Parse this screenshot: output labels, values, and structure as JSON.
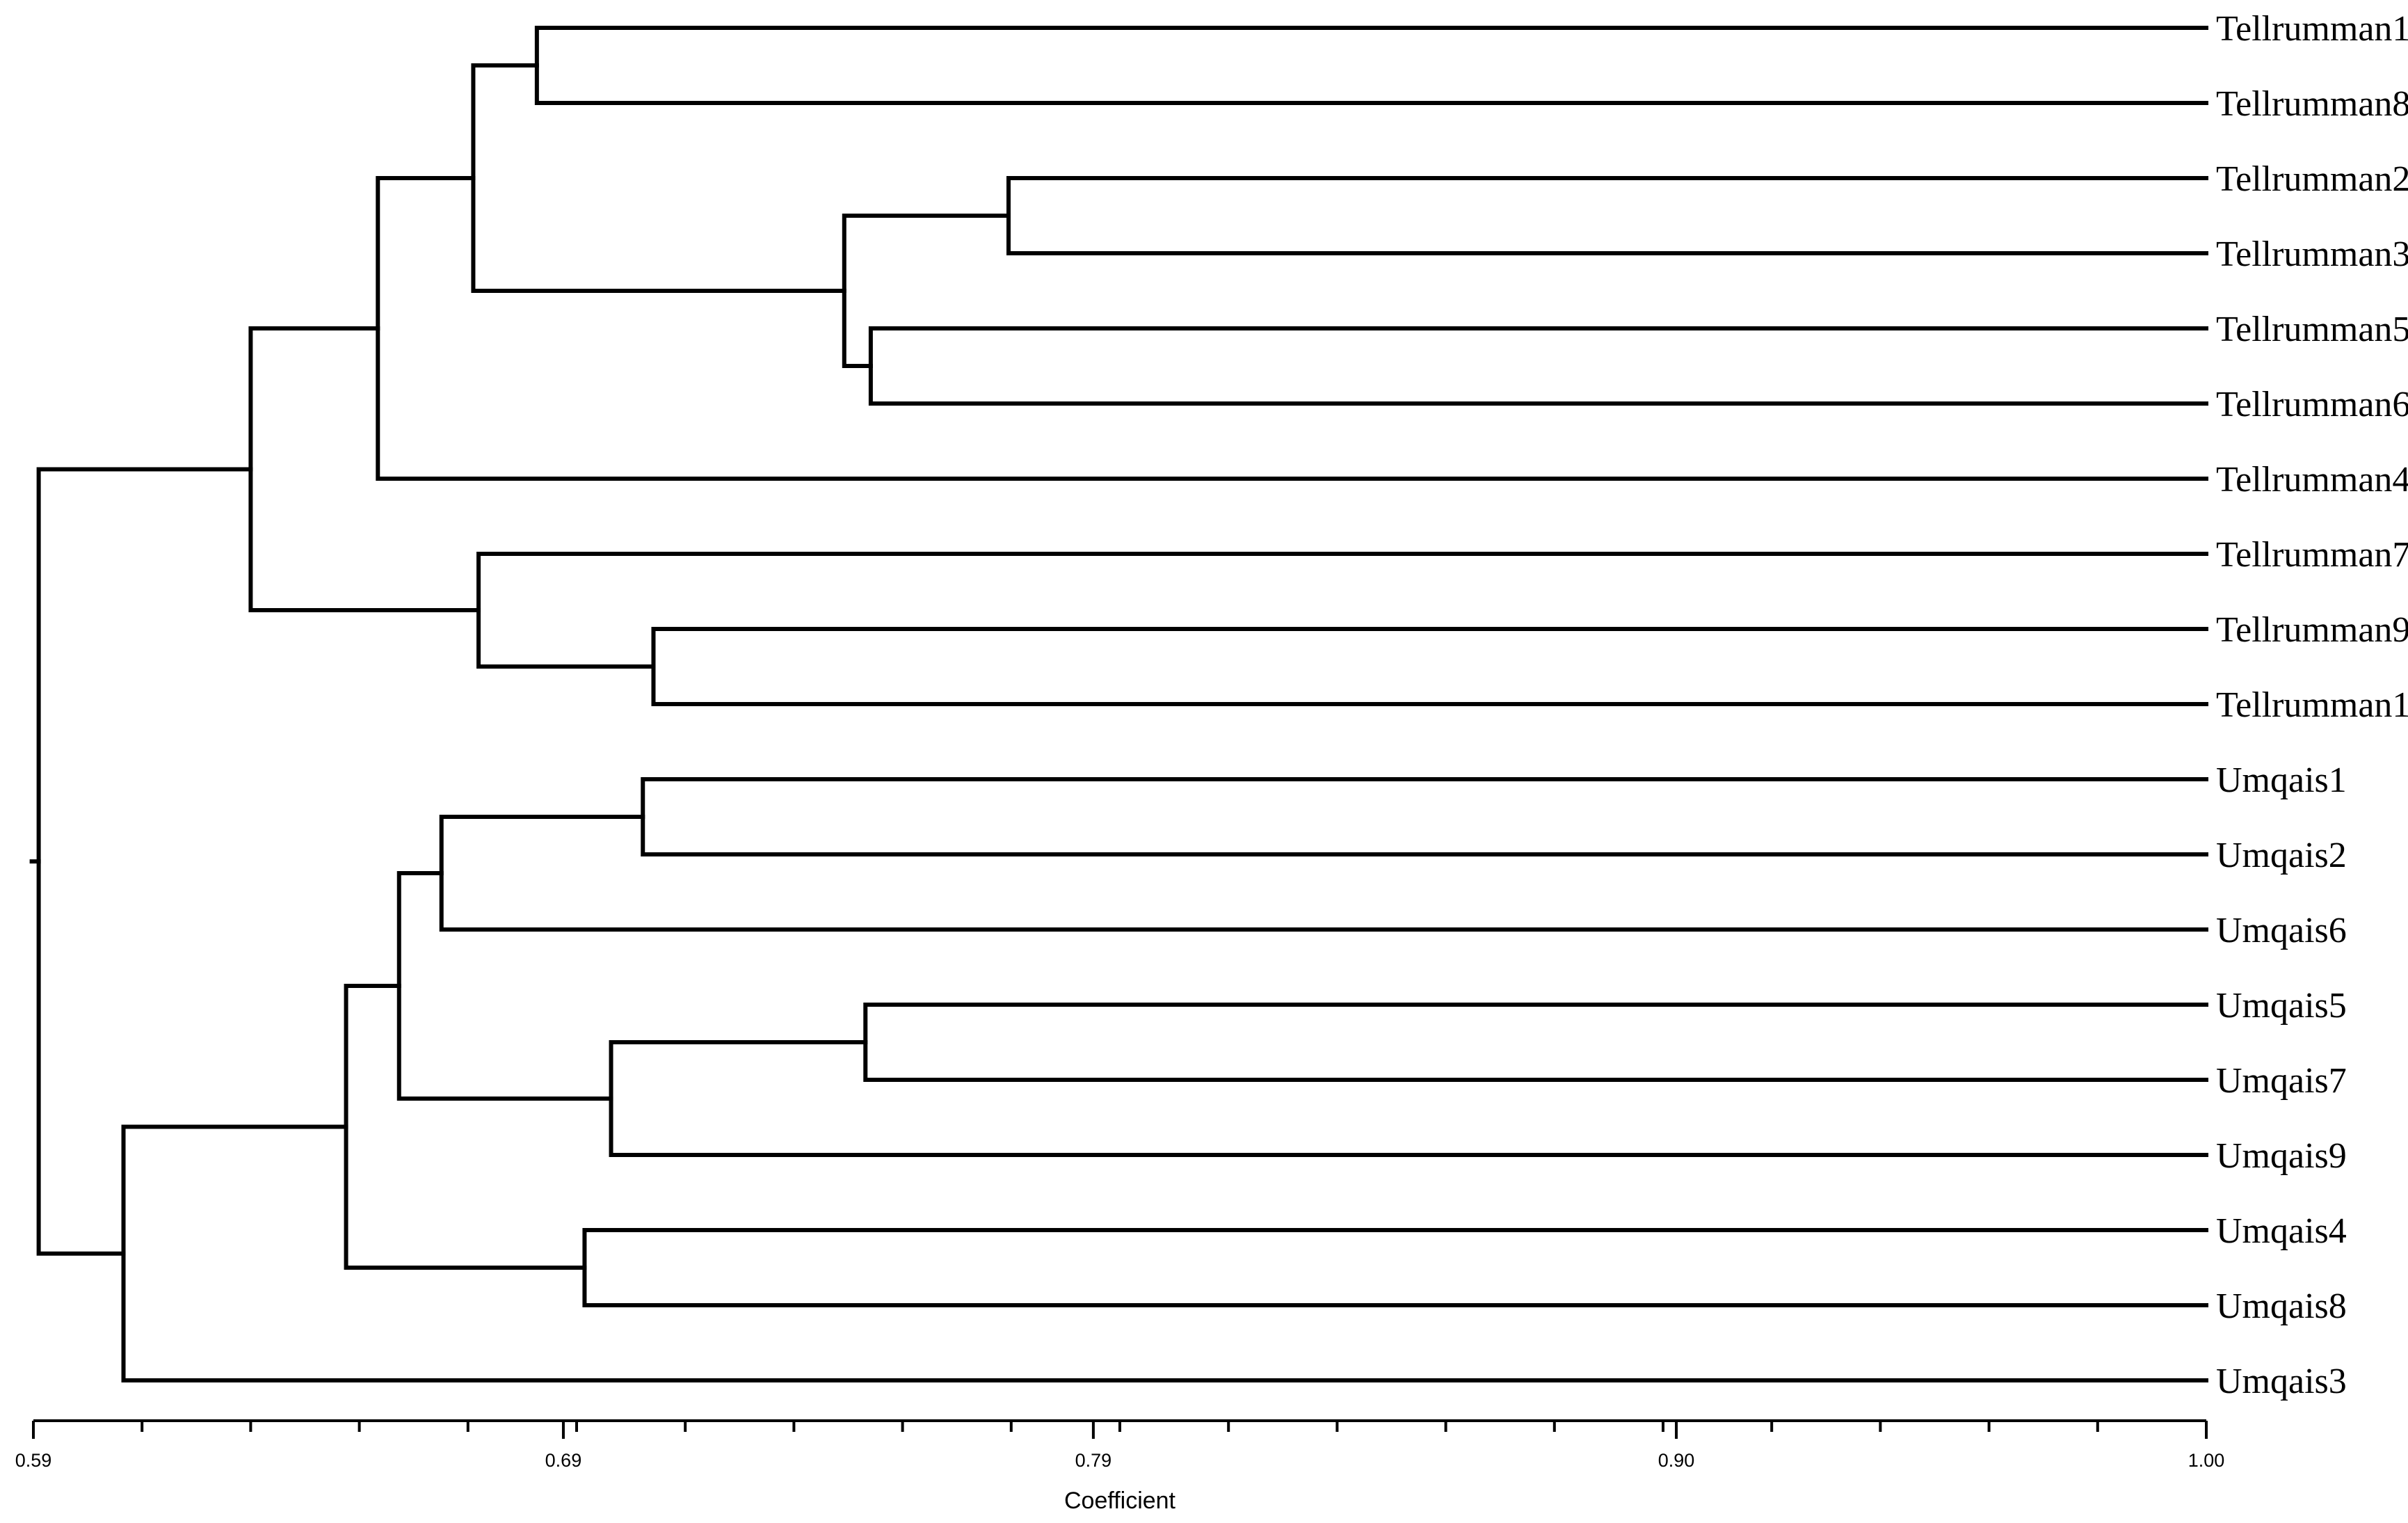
{
  "chart_data": {
    "type": "dendrogram",
    "xlabel": "Coefficient",
    "xlim": [
      0.59,
      1.0
    ],
    "ticks": [
      {
        "value": 0.59,
        "label": "0.59"
      },
      {
        "value": 0.69,
        "label": "0.69"
      },
      {
        "value": 0.79,
        "label": "0.79"
      },
      {
        "value": 0.9,
        "label": "0.90"
      },
      {
        "value": 1.0,
        "label": "1.00"
      }
    ],
    "minor_tick_step": 0.0205,
    "leaves": [
      "Tellrumman1",
      "Tellrumman8",
      "Tellrumman2",
      "Tellrumman3",
      "Tellrumman5",
      "Tellrumman6",
      "Tellrumman4",
      "Tellrumman7",
      "Tellrumman9",
      "Tellrumman1",
      "Umqais1",
      "Umqais2",
      "Umqais6",
      "Umqais5",
      "Umqais7",
      "Umqais9",
      "Umqais4",
      "Umqais8",
      "Umqais3"
    ],
    "leaf_coefficient": 1.0,
    "merges": [
      {
        "id": "m_t1_t8",
        "children": [
          0,
          1
        ],
        "height": 0.685
      },
      {
        "id": "m_t2_t3",
        "children": [
          2,
          3
        ],
        "height": 0.774
      },
      {
        "id": "m_t5_t6",
        "children": [
          4,
          5
        ],
        "height": 0.748
      },
      {
        "id": "m_t23_t56",
        "children": [
          "m_t2_t3",
          "m_t5_t6"
        ],
        "height": 0.743
      },
      {
        "id": "m_t18_t2356",
        "children": [
          "m_t1_t8",
          "m_t23_t56"
        ],
        "height": 0.673
      },
      {
        "id": "m_t4",
        "children": [
          "m_t18_t2356",
          6
        ],
        "height": 0.655
      },
      {
        "id": "m_t9_t1",
        "children": [
          8,
          9
        ],
        "height": 0.707
      },
      {
        "id": "m_t7",
        "children": [
          7,
          "m_t9_t1"
        ],
        "height": 0.674
      },
      {
        "id": "m_tell",
        "children": [
          "m_t4",
          "m_t7"
        ],
        "height": 0.631
      },
      {
        "id": "m_u1_u2",
        "children": [
          10,
          11
        ],
        "height": 0.705
      },
      {
        "id": "m_u6",
        "children": [
          "m_u1_u2",
          12
        ],
        "height": 0.667
      },
      {
        "id": "m_u5_u7",
        "children": [
          13,
          14
        ],
        "height": 0.747
      },
      {
        "id": "m_u9",
        "children": [
          "m_u5_u7",
          15
        ],
        "height": 0.699
      },
      {
        "id": "m_u126_u579",
        "children": [
          "m_u6",
          "m_u9"
        ],
        "height": 0.659
      },
      {
        "id": "m_u4_u8",
        "children": [
          16,
          17
        ],
        "height": 0.694
      },
      {
        "id": "m_u_big",
        "children": [
          "m_u126_u579",
          "m_u4_u8"
        ],
        "height": 0.649
      },
      {
        "id": "m_u3",
        "children": [
          "m_u_big",
          18
        ],
        "height": 0.607
      },
      {
        "id": "root",
        "children": [
          "m_tell",
          "m_u3"
        ],
        "height": 0.591
      }
    ]
  }
}
